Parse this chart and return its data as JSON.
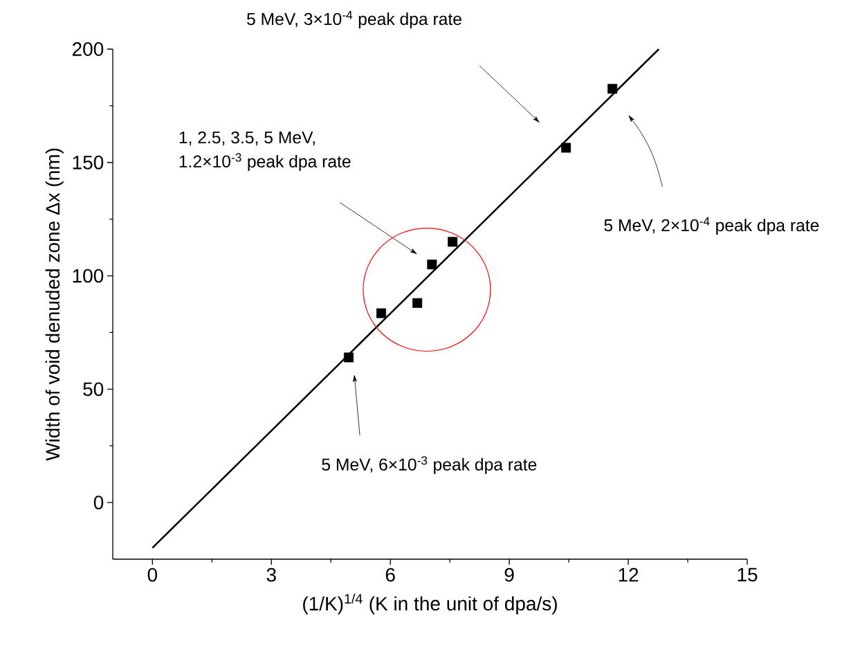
{
  "chart_data": {
    "type": "scatter",
    "xlabel": "(1/K)$^{1/4}$ (K in the unit of dpa/s)",
    "ylabel": "Width of void denuded zone Δx (nm)",
    "xlim": [
      -1,
      15
    ],
    "ylim": [
      -25,
      200
    ],
    "xticks": [
      0,
      3,
      6,
      9,
      12,
      15
    ],
    "yticks": [
      0,
      50,
      100,
      150,
      200
    ],
    "grid": false,
    "marker": "square",
    "series": [
      {
        "color": "#000000",
        "x": [
          4.95,
          5.77,
          6.68,
          7.05,
          7.57,
          10.43,
          11.6
        ],
        "values": [
          64,
          83.5,
          88,
          105,
          115,
          156.5,
          182.5
        ]
      },
      {
        "type": "line",
        "color": "#000000",
        "marker": "none",
        "x": [
          0,
          12.77
        ],
        "values": [
          -20,
          200
        ]
      }
    ],
    "annotations": [
      "5 MeV, 3×10$^{-4}$ peak dpa rate",
      "1, 2.5, 3.5, 5 MeV, 1.2×10$^{-3}$ peak dpa rate",
      "5 MeV, 2×10$^{-4}$ peak dpa rate",
      "5 MeV, 6×10$^{-3}$ peak dpa rate"
    ]
  }
}
